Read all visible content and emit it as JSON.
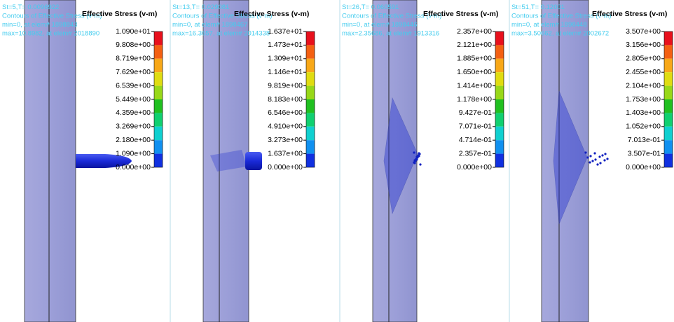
{
  "panels": [
    {
      "header": [
        "St=5,T= 0.0096922",
        "Contours of Effective Stress (v-m)",
        "min=0, at elem# 1898843",
        "max=10.8982, at elem# 2018890"
      ],
      "legend_title": "Effective Stress (v-m)",
      "legend_labels": [
        "1.090e+01",
        "9.808e+00",
        "8.719e+00",
        "7.629e+00",
        "6.539e+00",
        "5.449e+00",
        "4.359e+00",
        "3.269e+00",
        "2.180e+00",
        "1.090e+00",
        "0.000e+00"
      ]
    },
    {
      "header": [
        "St=13,T= 0.029081",
        "Contours of Effective Stress (v-m)",
        "min=0, at elem# 1898467",
        "max=16.3657, at elem# 2014338"
      ],
      "legend_title": "Effective Stress (v-m)",
      "legend_labels": [
        "1.637e+01",
        "1.473e+01",
        "1.309e+01",
        "1.146e+01",
        "9.819e+00",
        "8.183e+00",
        "6.546e+00",
        "4.910e+00",
        "3.273e+00",
        "1.637e+00",
        "0.000e+00"
      ]
    },
    {
      "header": [
        "St=26,T= 0.060591",
        "Contours of Effective Stress (v-m)",
        "min=0, at elem# 1898446",
        "max=2.35686, at elem# 1913316"
      ],
      "legend_title": "Effective Stress (v-m)",
      "legend_labels": [
        "2.357e+00",
        "2.121e+00",
        "1.885e+00",
        "1.650e+00",
        "1.414e+00",
        "1.178e+00",
        "9.427e-01",
        "7.071e-01",
        "4.714e-01",
        "2.357e-01",
        "0.000e+00"
      ]
    },
    {
      "header": [
        "St=51,T= 0.12001",
        "Contours of Effective Stress (v-m)",
        "min=0, at elem# 1898448",
        "max=3.50662, at elem# 2002672"
      ],
      "legend_title": "Effective Stress (v-m)",
      "legend_labels": [
        "3.507e+00",
        "3.156e+00",
        "2.805e+00",
        "2.455e+00",
        "2.104e+00",
        "1.753e+00",
        "1.403e+00",
        "1.052e+00",
        "7.013e-01",
        "3.507e-01",
        "0.000e+00"
      ]
    }
  ]
}
